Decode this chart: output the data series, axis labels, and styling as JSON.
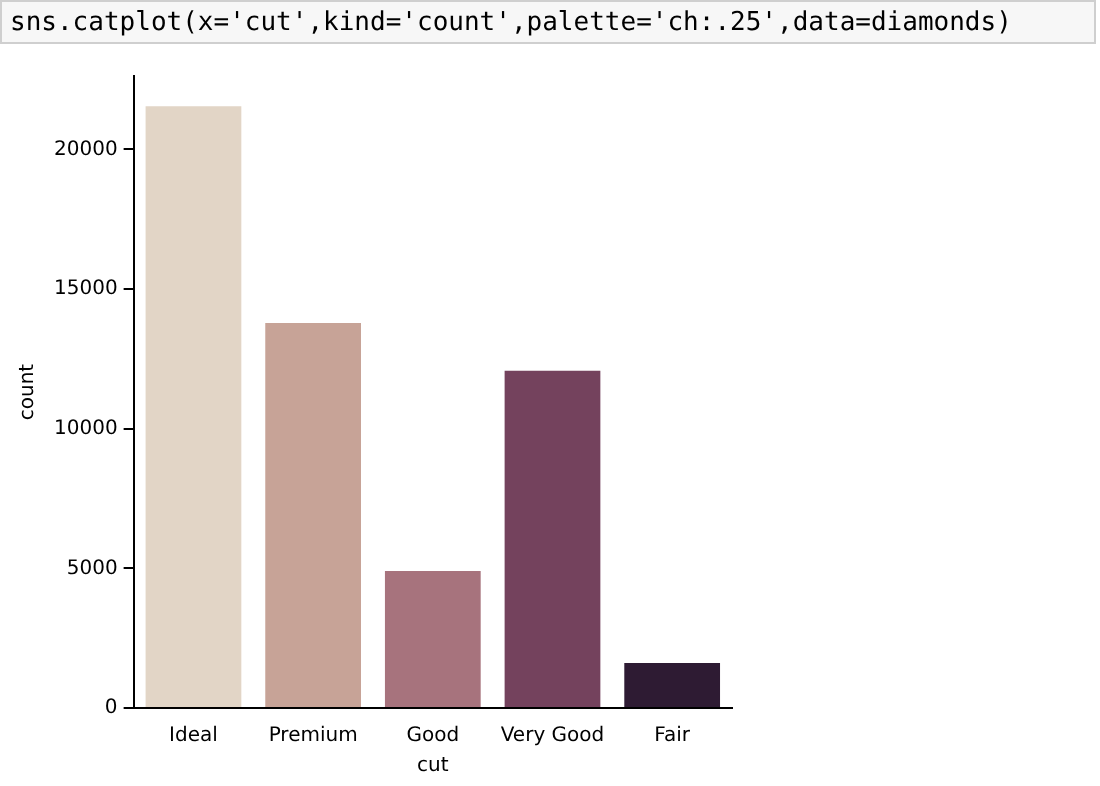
{
  "chart_data": {
    "type": "bar",
    "xlabel": "cut",
    "ylabel": "count",
    "annotations": [
      "sns.catplot(x='cut',kind='count',palette='ch:.25',data=diamonds)"
    ],
    "categories": [
      "Ideal",
      "Premium",
      "Good",
      "Very Good",
      "Fair"
    ],
    "values": [
      21550,
      13790,
      4910,
      12080,
      1610
    ],
    "colors": [
      "#e2d5c6",
      "#c7a397",
      "#a7737d",
      "#74425d",
      "#2e1b33"
    ],
    "ylim": [
      0,
      22630
    ],
    "yticks": [
      0,
      5000,
      10000,
      15000,
      20000
    ],
    "grid": false,
    "legend": false
  }
}
